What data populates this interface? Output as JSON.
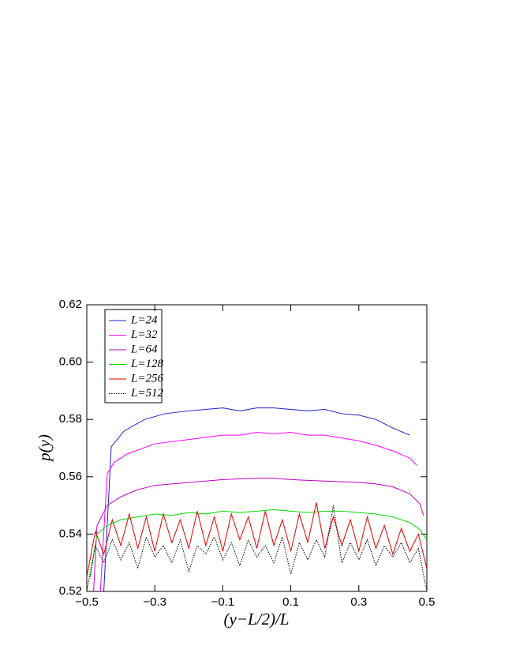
{
  "chart_data": {
    "type": "line",
    "x_label": "(y−L/2)/L",
    "y_label": "p(y)",
    "xlim": [
      -0.5,
      0.5
    ],
    "ylim": [
      0.52,
      0.62
    ],
    "xticks": [
      {
        "value": -0.5,
        "label": "−0.5"
      },
      {
        "value": -0.3,
        "label": "−0.3"
      },
      {
        "value": -0.1,
        "label": "−0.1"
      },
      0.1,
      0.3,
      0.5
    ],
    "yticks": [
      0.52,
      0.54,
      0.56,
      0.58,
      {
        "value": 0.6,
        "label": "0.60"
      },
      0.62
    ],
    "legend": "upper left",
    "series": [
      {
        "name": "L=24",
        "color": "#2020c8",
        "style": "solid",
        "x": [
          -0.45,
          -0.428,
          -0.39,
          -0.33,
          -0.27,
          -0.2,
          -0.15,
          -0.1,
          -0.05,
          0,
          0.05,
          0.1,
          0.15,
          0.2,
          0.25,
          0.3,
          0.35,
          0.4,
          0.45
        ],
        "values": [
          0.52,
          0.5705,
          0.576,
          0.58,
          0.582,
          0.583,
          0.5835,
          0.584,
          0.583,
          0.584,
          0.584,
          0.5835,
          0.583,
          0.5835,
          0.582,
          0.5815,
          0.58,
          0.577,
          0.5745
        ]
      },
      {
        "name": "L=32",
        "color": "#ff00ff",
        "style": "solid",
        "x": [
          -0.46,
          -0.44,
          -0.42,
          -0.38,
          -0.3,
          -0.2,
          -0.1,
          -0.05,
          0,
          0.05,
          0.1,
          0.15,
          0.2,
          0.25,
          0.3,
          0.35,
          0.4,
          0.45,
          0.47
        ],
        "values": [
          0.52,
          0.561,
          0.565,
          0.568,
          0.5715,
          0.573,
          0.5745,
          0.5745,
          0.5755,
          0.575,
          0.5755,
          0.5745,
          0.5745,
          0.5735,
          0.5725,
          0.571,
          0.569,
          0.5665,
          0.564
        ]
      },
      {
        "name": "L=64",
        "color": "#c000c0",
        "style": "solid",
        "x": [
          -0.48,
          -0.47,
          -0.44,
          -0.4,
          -0.35,
          -0.3,
          -0.2,
          -0.1,
          0,
          0.05,
          0.1,
          0.2,
          0.3,
          0.35,
          0.4,
          0.45,
          0.48,
          0.49
        ],
        "values": [
          0.52,
          0.543,
          0.55,
          0.553,
          0.5555,
          0.557,
          0.558,
          0.559,
          0.5595,
          0.5595,
          0.559,
          0.5585,
          0.558,
          0.5575,
          0.5565,
          0.554,
          0.5505,
          0.5465
        ]
      },
      {
        "name": "L=128",
        "color": "#00dd00",
        "style": "solid",
        "x": [
          -0.49,
          -0.47,
          -0.44,
          -0.4,
          -0.35,
          -0.3,
          -0.25,
          -0.2,
          -0.15,
          -0.1,
          -0.05,
          0,
          0.05,
          0.1,
          0.15,
          0.2,
          0.25,
          0.3,
          0.35,
          0.4,
          0.45,
          0.48,
          0.5
        ],
        "values": [
          0.525,
          0.54,
          0.543,
          0.545,
          0.546,
          0.547,
          0.5465,
          0.5475,
          0.547,
          0.548,
          0.5475,
          0.548,
          0.5485,
          0.548,
          0.5475,
          0.548,
          0.548,
          0.5475,
          0.547,
          0.546,
          0.544,
          0.5415,
          0.538
        ]
      },
      {
        "name": "L=256",
        "color": "#e00000",
        "style": "solid",
        "x": [
          -0.5,
          -0.475,
          -0.45,
          -0.425,
          -0.4,
          -0.375,
          -0.35,
          -0.325,
          -0.3,
          -0.275,
          -0.25,
          -0.225,
          -0.2,
          -0.175,
          -0.15,
          -0.125,
          -0.1,
          -0.075,
          -0.05,
          -0.025,
          0,
          0.025,
          0.05,
          0.075,
          0.1,
          0.125,
          0.15,
          0.175,
          0.2,
          0.225,
          0.25,
          0.275,
          0.3,
          0.325,
          0.35,
          0.375,
          0.4,
          0.425,
          0.45,
          0.475,
          0.5
        ],
        "values": [
          0.525,
          0.541,
          0.533,
          0.545,
          0.536,
          0.547,
          0.535,
          0.546,
          0.534,
          0.547,
          0.537,
          0.545,
          0.535,
          0.548,
          0.536,
          0.546,
          0.534,
          0.547,
          0.538,
          0.546,
          0.535,
          0.548,
          0.536,
          0.545,
          0.534,
          0.547,
          0.537,
          0.551,
          0.535,
          0.546,
          0.536,
          0.545,
          0.534,
          0.546,
          0.535,
          0.543,
          0.533,
          0.542,
          0.534,
          0.54,
          0.528
        ]
      },
      {
        "name": "L=512",
        "color": "#000000",
        "style": "dotted",
        "x": [
          -0.5,
          -0.475,
          -0.45,
          -0.425,
          -0.4,
          -0.375,
          -0.35,
          -0.325,
          -0.3,
          -0.275,
          -0.25,
          -0.225,
          -0.2,
          -0.175,
          -0.15,
          -0.125,
          -0.1,
          -0.075,
          -0.05,
          -0.025,
          0,
          0.025,
          0.05,
          0.075,
          0.1,
          0.125,
          0.15,
          0.175,
          0.2,
          0.225,
          0.25,
          0.275,
          0.3,
          0.325,
          0.35,
          0.375,
          0.4,
          0.425,
          0.45,
          0.475,
          0.5
        ],
        "values": [
          0.52,
          0.536,
          0.53,
          0.538,
          0.531,
          0.537,
          0.528,
          0.539,
          0.532,
          0.536,
          0.53,
          0.538,
          0.527,
          0.536,
          0.533,
          0.539,
          0.531,
          0.537,
          0.529,
          0.538,
          0.532,
          0.536,
          0.53,
          0.539,
          0.526,
          0.537,
          0.531,
          0.538,
          0.532,
          0.55,
          0.53,
          0.537,
          0.531,
          0.538,
          0.529,
          0.536,
          0.532,
          0.537,
          0.53,
          0.535,
          0.52
        ]
      }
    ]
  }
}
